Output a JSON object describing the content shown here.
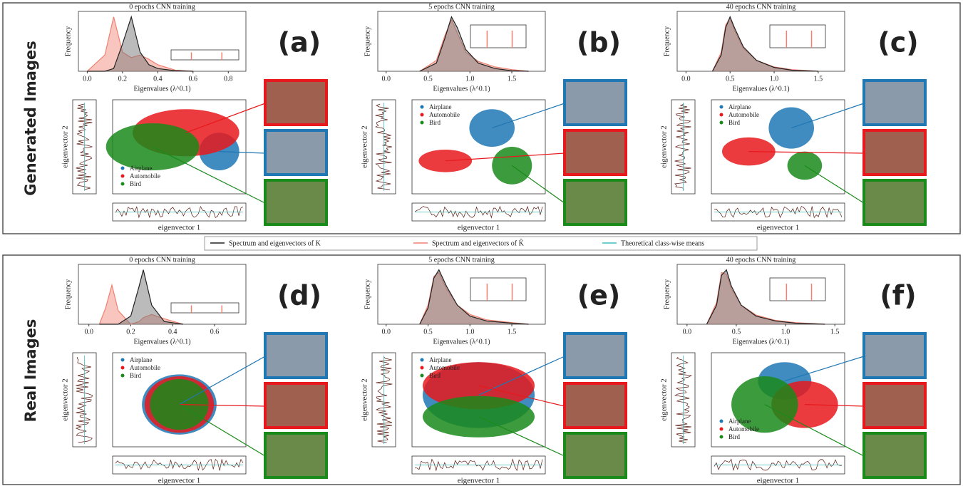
{
  "row_labels": [
    "Generated Images",
    "Real Images"
  ],
  "legend": {
    "items": [
      {
        "name": "Spectrum and eigenvectors of K",
        "color": "#222222"
      },
      {
        "name": "Spectrum and eigenvectors of K̂",
        "color": "#f08070"
      },
      {
        "name": "Theoretical class-wise means",
        "color": "#3fbfbf"
      }
    ]
  },
  "classes": [
    {
      "name": "Airplane",
      "color": "#1f77b4"
    },
    {
      "name": "Automobile",
      "color": "#e8191c"
    },
    {
      "name": "Bird",
      "color": "#1a8a1a"
    }
  ],
  "panels": [
    {
      "tag": "(a)",
      "title": "0 epochs CNN training",
      "xlabel": "Eigenvalues (λ^0.1)",
      "ylabel": "Frequency",
      "xlim": [
        -0.05,
        0.9
      ],
      "ylim": [
        0,
        1.1
      ],
      "xticks": [
        {
          "value": 0,
          "label": "0.0"
        },
        0.2,
        0.4,
        0.6,
        0.8
      ],
      "x": [
        0,
        0.1,
        0.15,
        0.2,
        0.25,
        0.3,
        0.35,
        0.4,
        0.5,
        0.6
      ],
      "k": [
        0,
        0,
        0.05,
        0.5,
        1.0,
        0.35,
        0.12,
        0.05,
        0.01,
        0
      ],
      "k_hat": [
        0,
        0.3,
        1.0,
        0.35,
        0.25,
        0.3,
        0.22,
        0.12,
        0.02,
        0
      ],
      "scatter_xlabel": "eigenvector 1",
      "scatter_ylabel": "eigenvector 2"
    },
    {
      "tag": "(b)",
      "title": "5 epochs CNN training",
      "xlabel": "Eigenvalues (λ^0.1)",
      "ylabel": "Frequency",
      "xlim": [
        -0.1,
        1.9
      ],
      "ylim": [
        0,
        1.1
      ],
      "xticks": [
        {
          "value": 0,
          "label": "0.0"
        },
        0.5,
        {
          "value": 1,
          "label": "1.0"
        },
        1.5
      ],
      "x": [
        0.4,
        0.6,
        0.7,
        0.78,
        0.85,
        0.95,
        1.1,
        1.3,
        1.5,
        1.7
      ],
      "k": [
        0,
        0.15,
        0.6,
        1.0,
        0.8,
        0.4,
        0.15,
        0.05,
        0.01,
        0
      ],
      "k_hat": [
        0,
        0.2,
        0.65,
        0.95,
        0.7,
        0.35,
        0.18,
        0.08,
        0.03,
        0
      ],
      "scatter_xlabel": "eigenvector 1",
      "scatter_ylabel": "eigenvector 2"
    },
    {
      "tag": "(c)",
      "title": "40 epochs CNN training",
      "xlabel": "Eigenvalues (λ^0.1)",
      "ylabel": "Frequency",
      "xlim": [
        -0.1,
        1.8
      ],
      "ylim": [
        0,
        1.1
      ],
      "xticks": [
        {
          "value": 0,
          "label": "0.0"
        },
        0.5,
        {
          "value": 1,
          "label": "1.0"
        },
        1.5
      ],
      "x": [
        0.3,
        0.4,
        0.45,
        0.5,
        0.55,
        0.65,
        0.8,
        1.0,
        1.2,
        1.5
      ],
      "k": [
        0,
        0.3,
        0.8,
        1.0,
        0.8,
        0.45,
        0.2,
        0.07,
        0.02,
        0
      ],
      "k_hat": [
        0,
        0.35,
        0.85,
        0.98,
        0.75,
        0.42,
        0.2,
        0.08,
        0.03,
        0
      ],
      "scatter_xlabel": "eigenvector 1",
      "scatter_ylabel": "eigenvector 2"
    },
    {
      "tag": "(d)",
      "title": "0 epochs CNN training",
      "xlabel": "Eigenvalues (λ^0.1)",
      "ylabel": "Frequency",
      "xlim": [
        -0.05,
        0.75
      ],
      "ylim": [
        0,
        1.1
      ],
      "xticks": [
        {
          "value": 0,
          "label": "0.0"
        },
        0.2,
        0.4,
        0.6
      ],
      "x": [
        0.05,
        0.08,
        0.11,
        0.14,
        0.2,
        0.24,
        0.26,
        0.3,
        0.36,
        0.45
      ],
      "k": [
        0,
        0,
        0,
        0,
        0.15,
        0.7,
        1.0,
        0.35,
        0.05,
        0
      ],
      "k_hat": [
        0,
        0.3,
        0.72,
        0.25,
        0,
        0.05,
        0.12,
        0.18,
        0.1,
        0
      ],
      "scatter_xlabel": "eigenvector 1",
      "scatter_ylabel": "eigenvector 2"
    },
    {
      "tag": "(e)",
      "title": "5 epochs CNN training",
      "xlabel": "Eigenvalues (λ^0.1)",
      "ylabel": "Frequency",
      "xlim": [
        -0.1,
        1.9
      ],
      "ylim": [
        0,
        1.1
      ],
      "xticks": [
        {
          "value": 0,
          "label": "0.0"
        },
        0.5,
        {
          "value": 1,
          "label": "1.0"
        },
        1.5
      ],
      "x": [
        0.4,
        0.5,
        0.57,
        0.63,
        0.72,
        0.85,
        1.0,
        1.2,
        1.5,
        1.7
      ],
      "k": [
        0,
        0.3,
        0.85,
        1.0,
        0.7,
        0.35,
        0.15,
        0.06,
        0.02,
        0
      ],
      "k_hat": [
        0,
        0.35,
        0.88,
        0.95,
        0.65,
        0.35,
        0.18,
        0.08,
        0.03,
        0
      ],
      "scatter_xlabel": "eigenvector 1",
      "scatter_ylabel": "eigenvector 2"
    },
    {
      "tag": "(f)",
      "title": "40 epochs CNN training",
      "xlabel": "Eigenvalues (λ^0.1)",
      "ylabel": "Frequency",
      "xlim": [
        -0.1,
        1.6
      ],
      "ylim": [
        0,
        1.1
      ],
      "xticks": [
        {
          "value": 0,
          "label": "0.0"
        },
        0.5,
        {
          "value": 1,
          "label": "1.0"
        },
        1.5
      ],
      "x": [
        0.2,
        0.3,
        0.35,
        0.4,
        0.45,
        0.55,
        0.7,
        0.9,
        1.1,
        1.4
      ],
      "k": [
        0,
        0.35,
        0.9,
        1.0,
        0.7,
        0.35,
        0.15,
        0.06,
        0.02,
        0
      ],
      "k_hat": [
        0,
        0.4,
        0.95,
        0.92,
        0.65,
        0.35,
        0.17,
        0.07,
        0.03,
        0
      ],
      "scatter_xlabel": "eigenvector 1",
      "scatter_ylabel": "eigenvector 2"
    }
  ]
}
